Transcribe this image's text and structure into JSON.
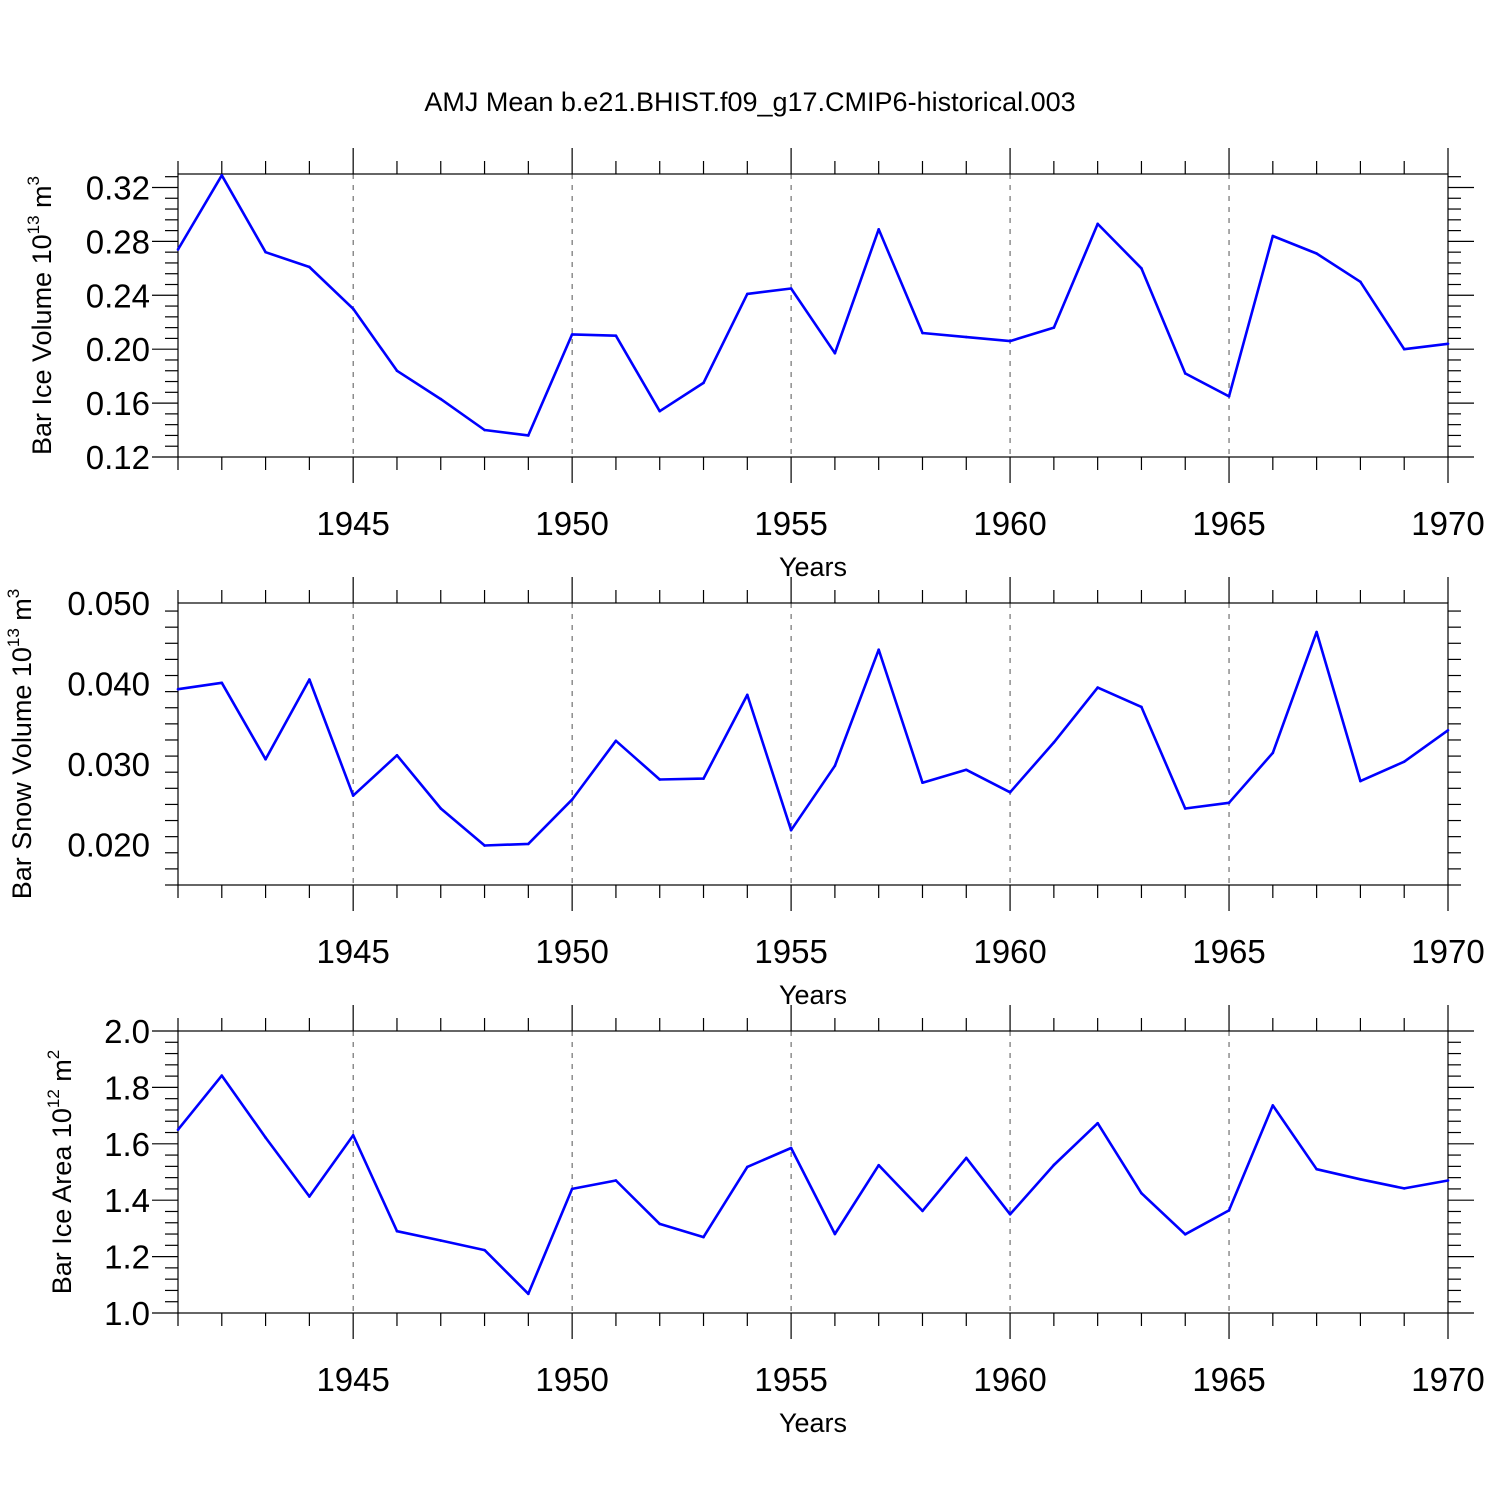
{
  "title": "AMJ Mean b.e21.BHIST.f09_g17.CMIP6-historical.003",
  "colors": {
    "line": "#0000ff",
    "axis": "#000000",
    "grid": "#555555"
  },
  "chart_data": [
    {
      "type": "line",
      "xlabel": "Years",
      "ylabel": {
        "text": "Bar Ice Volume 10",
        "exp": "13",
        "unit": " m",
        "unit_exp": "3"
      },
      "xlim": [
        1941,
        1970
      ],
      "ylim": [
        0.12,
        0.33
      ],
      "xticks": [
        1945,
        1950,
        1955,
        1960,
        1965,
        1970
      ],
      "yticks": [
        "0.12",
        "0.16",
        "0.20",
        "0.24",
        "0.28",
        "0.32"
      ],
      "grid": "vertical dashed at major x ticks",
      "x": [
        1941,
        1942,
        1943,
        1944,
        1945,
        1946,
        1947,
        1948,
        1949,
        1950,
        1951,
        1952,
        1953,
        1954,
        1955,
        1956,
        1957,
        1958,
        1959,
        1960,
        1961,
        1962,
        1963,
        1964,
        1965,
        1966,
        1967,
        1968,
        1969,
        1970
      ],
      "values": [
        0.274,
        0.329,
        0.272,
        0.261,
        0.23,
        0.184,
        0.163,
        0.14,
        0.136,
        0.211,
        0.21,
        0.154,
        0.175,
        0.241,
        0.245,
        0.197,
        0.289,
        0.212,
        0.209,
        0.206,
        0.216,
        0.293,
        0.26,
        0.182,
        0.165,
        0.284,
        0.271,
        0.25,
        0.2,
        0.204
      ]
    },
    {
      "type": "line",
      "xlabel": "Years",
      "ylabel": {
        "text": "Bar Snow Volume 10",
        "exp": "13",
        "unit": " m",
        "unit_exp": "3"
      },
      "xlim": [
        1941,
        1970
      ],
      "ylim": [
        0.015,
        0.05
      ],
      "xticks": [
        1945,
        1950,
        1955,
        1960,
        1965,
        1970
      ],
      "yticks": [
        "0.020",
        "0.030",
        "0.040",
        "0.050"
      ],
      "grid": "vertical dashed at major x ticks",
      "x": [
        1941,
        1942,
        1943,
        1944,
        1945,
        1946,
        1947,
        1948,
        1949,
        1950,
        1951,
        1952,
        1953,
        1954,
        1955,
        1956,
        1957,
        1958,
        1959,
        1960,
        1961,
        1962,
        1963,
        1964,
        1965,
        1966,
        1967,
        1968,
        1969,
        1970
      ],
      "values": [
        0.0393,
        0.0401,
        0.0306,
        0.0405,
        0.0261,
        0.0311,
        0.0245,
        0.0199,
        0.0201,
        0.0256,
        0.0329,
        0.0281,
        0.0282,
        0.0386,
        0.0218,
        0.0298,
        0.0442,
        0.0277,
        0.0293,
        0.0265,
        0.0327,
        0.0395,
        0.0371,
        0.0245,
        0.0252,
        0.0314,
        0.0464,
        0.0279,
        0.0303,
        0.0342
      ]
    },
    {
      "type": "line",
      "xlabel": "Years",
      "ylabel": {
        "text": "Bar Ice Area 10",
        "exp": "12",
        "unit": " m",
        "unit_exp": "2"
      },
      "xlim": [
        1941,
        1970
      ],
      "ylim": [
        1.0,
        2.0
      ],
      "xticks": [
        1945,
        1950,
        1955,
        1960,
        1965,
        1970
      ],
      "yticks": [
        "1.0",
        "1.2",
        "1.4",
        "1.6",
        "1.8",
        "2.0"
      ],
      "grid": "vertical dashed at major x ticks",
      "x": [
        1941,
        1942,
        1943,
        1944,
        1945,
        1946,
        1947,
        1948,
        1949,
        1950,
        1951,
        1952,
        1953,
        1954,
        1955,
        1956,
        1957,
        1958,
        1959,
        1960,
        1961,
        1962,
        1963,
        1964,
        1965,
        1966,
        1967,
        1968,
        1969,
        1970
      ],
      "values": [
        1.65,
        1.842,
        1.622,
        1.413,
        1.63,
        1.29,
        1.257,
        1.223,
        1.068,
        1.44,
        1.47,
        1.316,
        1.269,
        1.518,
        1.585,
        1.28,
        1.524,
        1.362,
        1.55,
        1.35,
        1.525,
        1.673,
        1.425,
        1.279,
        1.364,
        1.736,
        1.51,
        1.474,
        1.442,
        1.47
      ]
    }
  ]
}
